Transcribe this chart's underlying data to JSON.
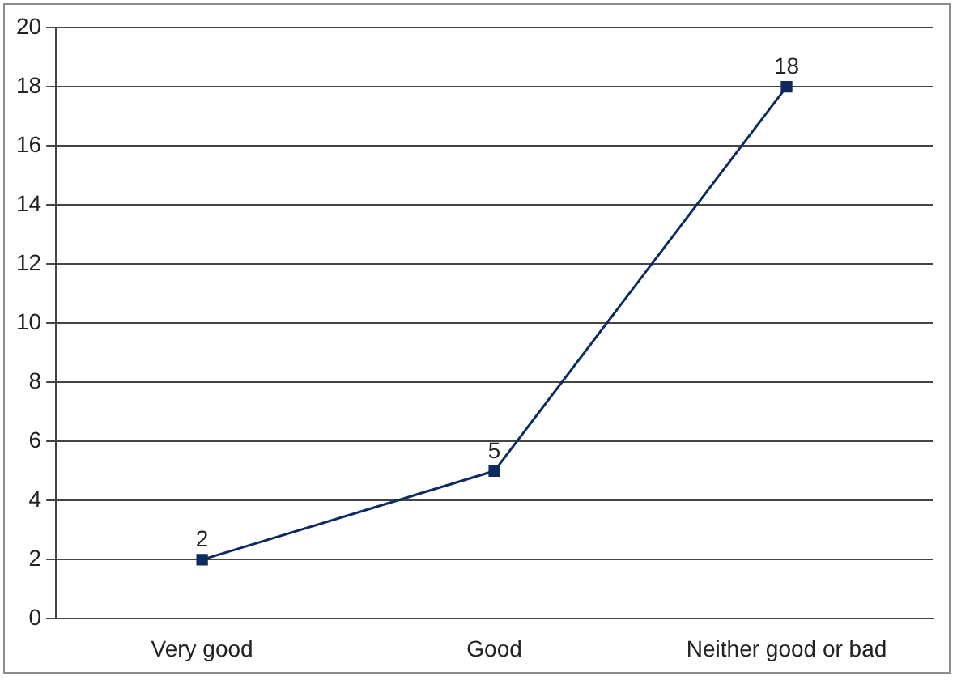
{
  "chart_data": {
    "type": "line",
    "categories": [
      "Very good",
      "Good",
      "Neither good or bad"
    ],
    "series": [
      {
        "color": "#0d2b5e",
        "values": [
          2,
          5,
          18
        ]
      }
    ],
    "ylim": [
      0,
      20
    ],
    "yticks": [
      0,
      2,
      4,
      6,
      8,
      10,
      12,
      14,
      16,
      18,
      20
    ],
    "grid": "y",
    "marker": "square",
    "line_style": "solid",
    "data_labels": true,
    "legend": false
  }
}
